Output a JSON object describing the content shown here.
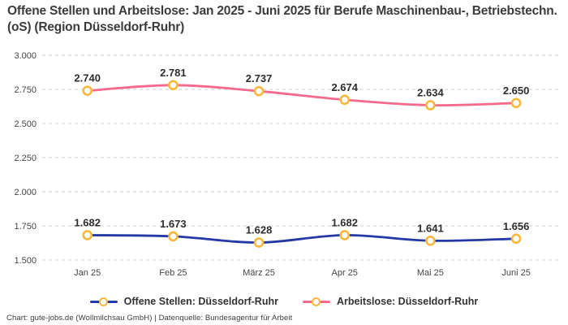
{
  "title": "Offene Stellen und Arbeitslose: Jan 2025 - Juni 2025 für Berufe Maschinenbau-, Betriebstechn.(oS) (Region Düsseldorf-Ruhr)",
  "footer": "Chart: gute-jobs.de (Wollmilchsau GmbH) | Datenquelle: Bundesagentur für Arbeit",
  "chart_data": {
    "type": "line",
    "title": "Offene Stellen und Arbeitslose: Jan 2025 - Juni 2025 für Berufe Maschinenbau-, Betriebstechn.(oS) (Region Düsseldorf-Ruhr)",
    "categories": [
      "Jan 25",
      "Feb 25",
      "März 25",
      "Apr 25",
      "Mai 25",
      "Juni 25"
    ],
    "series": [
      {
        "name": "Offene Stellen: Düsseldorf-Ruhr",
        "color": "#2438a6",
        "values": [
          1682,
          1673,
          1628,
          1682,
          1641,
          1656
        ],
        "labels": [
          "1.682",
          "1.673",
          "1.628",
          "1.682",
          "1.641",
          "1.656"
        ]
      },
      {
        "name": "Arbeitslose: Düsseldorf-Ruhr",
        "color": "#f56a8b",
        "values": [
          2740,
          2781,
          2737,
          2674,
          2634,
          2650
        ],
        "labels": [
          "2.740",
          "2.781",
          "2.737",
          "2.674",
          "2.634",
          "2.650"
        ]
      }
    ],
    "y_ticks": [
      {
        "value": 3000,
        "label": "3.000"
      },
      {
        "value": 2750,
        "label": "2.750"
      },
      {
        "value": 2500,
        "label": "2.500"
      },
      {
        "value": 2250,
        "label": "2.250"
      },
      {
        "value": 2000,
        "label": "2.000"
      },
      {
        "value": 1750,
        "label": "1.750"
      },
      {
        "value": 1500,
        "label": "1.500"
      }
    ],
    "ylim": [
      1500,
      3000
    ],
    "xlabel": "",
    "ylabel": "",
    "grid": "horizontal-dashed",
    "grid_color": "#cccccc",
    "marker": {
      "fill": "#ffffff",
      "stroke": "#f6b73c"
    },
    "legend_position": "bottom",
    "data_labels": true
  }
}
